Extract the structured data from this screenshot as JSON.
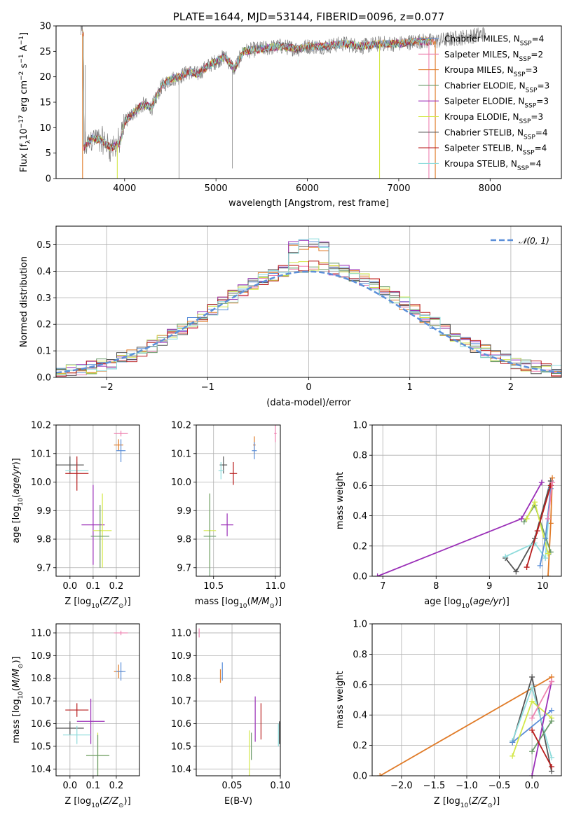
{
  "colors": {
    "chabrier_miles": "#5b8fd9",
    "salpeter_miles": "#ee82b0",
    "kroupa_miles": "#e07b28",
    "chabrier_elodie": "#6a9a6a",
    "salpeter_elodie": "#9b30b8",
    "kroupa_elodie": "#d4e84a",
    "chabrier_stelib": "#555555",
    "salpeter_stelib": "#b81c1c",
    "kroupa_stelib": "#8fdcdc",
    "data_gray": "#808080",
    "grid": "#b0b0b0"
  },
  "legend_sp": [
    {
      "key": "chabrier_miles",
      "text": "Chabrier MILES, N",
      "sub": "SSP",
      "suf": "=4"
    },
    {
      "key": "salpeter_miles",
      "text": "Salpeter MILES, N",
      "sub": "SSP",
      "suf": "=2"
    },
    {
      "key": "kroupa_miles",
      "text": "Kroupa MILES, N",
      "sub": "SSP",
      "suf": "=3"
    },
    {
      "key": "chabrier_elodie",
      "text": "Chabrier ELODIE, N",
      "sub": "SSP",
      "suf": "=3"
    },
    {
      "key": "salpeter_elodie",
      "text": "Salpeter ELODIE, N",
      "sub": "SSP",
      "suf": "=3"
    },
    {
      "key": "kroupa_elodie",
      "text": "Kroupa ELODIE, N",
      "sub": "SSP",
      "suf": "=3"
    },
    {
      "key": "chabrier_stelib",
      "text": "Chabrier STELIB, N",
      "sub": "SSP",
      "suf": "=4"
    },
    {
      "key": "salpeter_stelib",
      "text": "Salpeter STELIB, N",
      "sub": "SSP",
      "suf": "=4"
    },
    {
      "key": "kroupa_stelib",
      "text": "Kroupa STELIB, N",
      "sub": "SSP",
      "suf": "=4"
    }
  ],
  "chart_data": [
    {
      "type": "line",
      "title": "PLATE=1644, MJD=53144, FIBERID=0096, z=0.077",
      "xlabel": "wavelength [Angstrom, rest frame]",
      "ylabel": "Flux [f_λ10^-17 erg cm^-2 s^-1 A^-1]",
      "xlim": [
        3250,
        8780
      ],
      "ylim": [
        0,
        30
      ],
      "xticks": [
        4000,
        5000,
        6000,
        7000,
        8000
      ],
      "yticks": [
        0,
        5,
        10,
        15,
        20,
        25,
        30
      ],
      "spectrum_anchors": [
        [
          3550,
          6
        ],
        [
          3650,
          8
        ],
        [
          3750,
          7.5
        ],
        [
          3850,
          6
        ],
        [
          3950,
          7
        ],
        [
          4000,
          11
        ],
        [
          4100,
          13
        ],
        [
          4200,
          14.5
        ],
        [
          4300,
          14
        ],
        [
          4400,
          18
        ],
        [
          4500,
          19.5
        ],
        [
          4600,
          20
        ],
        [
          4700,
          21
        ],
        [
          4800,
          20.5
        ],
        [
          4900,
          22
        ],
        [
          5000,
          23
        ],
        [
          5100,
          24
        ],
        [
          5200,
          21.5
        ],
        [
          5300,
          25
        ],
        [
          5500,
          25.5
        ],
        [
          5700,
          26
        ],
        [
          5900,
          25.5
        ],
        [
          6000,
          26
        ],
        [
          6200,
          26
        ],
        [
          6400,
          26.5
        ],
        [
          6600,
          26
        ],
        [
          6800,
          26.5
        ],
        [
          7000,
          26.5
        ],
        [
          7200,
          27
        ],
        [
          7400,
          27
        ],
        [
          7600,
          27.5
        ],
        [
          7800,
          28
        ],
        [
          7950,
          28.5
        ]
      ]
    },
    {
      "type": "line",
      "xlabel": "(data-model)/error",
      "ylabel": "Normed distribution",
      "xlim": [
        -2.5,
        2.5
      ],
      "ylim": [
        0,
        0.57
      ],
      "xticks": [
        -2,
        -1,
        0,
        1,
        2
      ],
      "xtick_labels": [
        "−2",
        "−1",
        "0",
        "1",
        "2"
      ],
      "yticks": [
        0,
        0.1,
        0.2,
        0.3,
        0.4,
        0.5
      ],
      "ytick_labels": [
        "0.0",
        "0.1",
        "0.2",
        "0.3",
        "0.4",
        "0.5"
      ],
      "reference_curve": "𝒩(0, 1)",
      "hist_bins": 50
    },
    {
      "type": "scatter",
      "xlabel": "Z [log10(Z/Z⊙)]",
      "ylabel": "age  [log10(age/yr)]",
      "xlim": [
        -0.06,
        0.3
      ],
      "ylim": [
        9.67,
        10.2
      ],
      "xticks": [
        0.0,
        0.1,
        0.2
      ],
      "xtick_labels": [
        "0.0",
        "0.1",
        "0.2"
      ],
      "yticks": [
        9.7,
        9.8,
        9.9,
        10.0,
        10.1,
        10.2
      ],
      "ytick_labels": [
        "9.7",
        "9.8",
        "9.9",
        "10.0",
        "10.1",
        "10.2"
      ],
      "points": [
        {
          "s": "salpeter_miles",
          "x": 0.22,
          "xerr": 0.03,
          "y": 10.17,
          "yerr": 0.01
        },
        {
          "s": "kroupa_miles",
          "x": 0.21,
          "xerr": 0.02,
          "y": 10.13,
          "yerr": 0.02
        },
        {
          "s": "chabrier_miles",
          "x": 0.22,
          "xerr": 0.02,
          "y": 10.11,
          "yerr": 0.04
        },
        {
          "s": "chabrier_stelib",
          "x": 0.0,
          "xerr": 0.06,
          "y": 10.06,
          "yerr": 0.03
        },
        {
          "s": "kroupa_stelib",
          "x": 0.03,
          "xerr": 0.05,
          "y": 10.04,
          "yerr": 0.03
        },
        {
          "s": "salpeter_stelib",
          "x": 0.03,
          "xerr": 0.05,
          "y": 10.03,
          "yerr": 0.06
        },
        {
          "s": "salpeter_elodie",
          "x": 0.1,
          "xerr": 0.05,
          "y": 9.85,
          "yerr": 0.14
        },
        {
          "s": "kroupa_elodie",
          "x": 0.14,
          "xerr": 0.04,
          "y": 9.83,
          "yerr": 0.13
        },
        {
          "s": "chabrier_elodie",
          "x": 0.13,
          "xerr": 0.04,
          "y": 9.81,
          "yerr": 0.11
        }
      ]
    },
    {
      "type": "scatter",
      "xlabel": "mass [log10(M/M⊙)]",
      "xlim": [
        10.36,
        11.04
      ],
      "ylim": [
        9.67,
        10.2
      ],
      "xticks": [
        10.5,
        11.0
      ],
      "xtick_labels": [
        "10.5",
        "11.0"
      ],
      "yticks": [
        9.7,
        9.8,
        9.9,
        10.0,
        10.1,
        10.2
      ],
      "ytick_labels": [
        "9.7",
        "9.8",
        "9.9",
        "10.0",
        "10.1",
        "10.2"
      ],
      "points": [
        {
          "s": "salpeter_miles",
          "x": 11.0,
          "xerr": 0.01,
          "y": 10.17,
          "yerr": 0.03
        },
        {
          "s": "kroupa_miles",
          "x": 10.83,
          "xerr": 0.01,
          "y": 10.13,
          "yerr": 0.03
        },
        {
          "s": "chabrier_miles",
          "x": 10.83,
          "xerr": 0.02,
          "y": 10.11,
          "yerr": 0.03
        },
        {
          "s": "chabrier_stelib",
          "x": 10.58,
          "xerr": 0.03,
          "y": 10.06,
          "yerr": 0.03
        },
        {
          "s": "kroupa_stelib",
          "x": 10.56,
          "xerr": 0.02,
          "y": 10.04,
          "yerr": 0.03
        },
        {
          "s": "salpeter_stelib",
          "x": 10.66,
          "xerr": 0.03,
          "y": 10.03,
          "yerr": 0.04
        },
        {
          "s": "salpeter_elodie",
          "x": 10.61,
          "xerr": 0.05,
          "y": 9.85,
          "yerr": 0.04
        },
        {
          "s": "kroupa_elodie",
          "x": 10.47,
          "xerr": 0.05,
          "y": 9.83,
          "yerr": 0.13
        },
        {
          "s": "chabrier_elodie",
          "x": 10.47,
          "xerr": 0.05,
          "y": 9.81,
          "yerr": 0.15
        }
      ]
    },
    {
      "type": "line",
      "xlabel": "age  [log10(age/yr)]",
      "ylabel": "mass weight",
      "xlim": [
        6.8,
        10.35
      ],
      "ylim": [
        0,
        1
      ],
      "xticks": [
        7,
        8,
        9,
        10
      ],
      "xtick_labels": [
        "7",
        "8",
        "9",
        "10"
      ],
      "yticks": [
        0,
        0.2,
        0.4,
        0.6,
        0.8,
        1.0
      ],
      "ytick_labels": [
        "0.0",
        "0.2",
        "0.4",
        "0.6",
        "0.8",
        "1.0"
      ],
      "series": [
        {
          "s": "salpeter_elodie",
          "x": [
            6.9,
            9.6,
            9.98
          ],
          "y": [
            0.0,
            0.38,
            0.62
          ]
        },
        {
          "s": "kroupa_miles",
          "x": [
            10.1,
            10.15,
            10.18
          ],
          "y": [
            0.0,
            0.35,
            0.65
          ]
        },
        {
          "s": "chabrier_stelib",
          "x": [
            9.3,
            9.5,
            9.85,
            10.15
          ],
          "y": [
            0.12,
            0.03,
            0.25,
            0.63
          ]
        },
        {
          "s": "kroupa_stelib",
          "x": [
            9.3,
            9.85,
            10.05,
            10.15
          ],
          "y": [
            0.13,
            0.22,
            0.12,
            0.58
          ]
        },
        {
          "s": "chabrier_elodie",
          "x": [
            9.65,
            9.85,
            10.15
          ],
          "y": [
            0.36,
            0.47,
            0.16
          ]
        },
        {
          "s": "kroupa_elodie",
          "x": [
            9.7,
            9.85,
            10.1
          ],
          "y": [
            0.38,
            0.49,
            0.15
          ]
        },
        {
          "s": "chabrier_miles",
          "x": [
            9.95,
            10.05,
            10.15
          ],
          "y": [
            0.07,
            0.25,
            0.58
          ]
        },
        {
          "s": "salpeter_stelib",
          "x": [
            9.7,
            9.9,
            10.15
          ],
          "y": [
            0.06,
            0.3,
            0.6
          ]
        },
        {
          "s": "salpeter_miles",
          "x": [
            10.1,
            10.18
          ],
          "y": [
            0.38,
            0.62
          ]
        }
      ]
    },
    {
      "type": "scatter",
      "xlabel": "Z [log10(Z/Z⊙)]",
      "ylabel": "mass [log10(M/M⊙)]",
      "xlim": [
        -0.06,
        0.3
      ],
      "ylim": [
        10.37,
        11.04
      ],
      "xticks": [
        0.0,
        0.1,
        0.2
      ],
      "xtick_labels": [
        "0.0",
        "0.1",
        "0.2"
      ],
      "yticks": [
        10.4,
        10.5,
        10.6,
        10.7,
        10.8,
        10.9,
        11.0
      ],
      "ytick_labels": [
        "10.4",
        "10.5",
        "10.6",
        "10.7",
        "10.8",
        "10.9",
        "11.0"
      ],
      "points": [
        {
          "s": "salpeter_miles",
          "x": 0.22,
          "xerr": 0.03,
          "y": 11.0,
          "yerr": 0.01
        },
        {
          "s": "kroupa_miles",
          "x": 0.21,
          "xerr": 0.02,
          "y": 10.83,
          "yerr": 0.03
        },
        {
          "s": "chabrier_miles",
          "x": 0.22,
          "xerr": 0.02,
          "y": 10.83,
          "yerr": 0.04
        },
        {
          "s": "salpeter_stelib",
          "x": 0.03,
          "xerr": 0.05,
          "y": 10.66,
          "yerr": 0.03
        },
        {
          "s": "salpeter_elodie",
          "x": 0.09,
          "xerr": 0.06,
          "y": 10.61,
          "yerr": 0.1
        },
        {
          "s": "chabrier_stelib",
          "x": 0.0,
          "xerr": 0.06,
          "y": 10.58,
          "yerr": 0.03
        },
        {
          "s": "kroupa_stelib",
          "x": 0.03,
          "xerr": 0.06,
          "y": 10.55,
          "yerr": 0.04
        },
        {
          "s": "kroupa_elodie",
          "x": 0.12,
          "xerr": 0.05,
          "y": 10.46,
          "yerr": 0.1
        },
        {
          "s": "chabrier_elodie",
          "x": 0.12,
          "xerr": 0.05,
          "y": 10.46,
          "yerr": 0.09
        }
      ]
    },
    {
      "type": "scatter",
      "xlabel": "E(B-V)",
      "xlim": [
        0.013,
        0.1
      ],
      "ylim": [
        10.37,
        11.04
      ],
      "xticks": [
        0.05,
        0.1
      ],
      "xtick_labels": [
        "0.05",
        "0.10"
      ],
      "yticks": [
        10.4,
        10.5,
        10.6,
        10.7,
        10.8,
        10.9,
        11.0
      ],
      "ytick_labels": [
        "10.4",
        "10.5",
        "10.6",
        "10.7",
        "10.8",
        "10.9",
        "11.0"
      ],
      "points": [
        {
          "s": "salpeter_miles",
          "x": 0.016,
          "xerr": 0.0,
          "y": 11.0,
          "yerr": 0.02
        },
        {
          "s": "chabrier_miles",
          "x": 0.04,
          "xerr": 0.0,
          "y": 10.83,
          "yerr": 0.04
        },
        {
          "s": "kroupa_miles",
          "x": 0.038,
          "xerr": 0.0,
          "y": 10.81,
          "yerr": 0.03
        },
        {
          "s": "salpeter_elodie",
          "x": 0.074,
          "xerr": 0.0,
          "y": 10.62,
          "yerr": 0.1
        },
        {
          "s": "salpeter_stelib",
          "x": 0.08,
          "xerr": 0.0,
          "y": 10.61,
          "yerr": 0.08
        },
        {
          "s": "chabrier_stelib",
          "x": 0.099,
          "xerr": 0.0,
          "y": 10.56,
          "yerr": 0.05
        },
        {
          "s": "kroupa_stelib",
          "x": 0.098,
          "xerr": 0.0,
          "y": 10.55,
          "yerr": 0.05
        },
        {
          "s": "chabrier_elodie",
          "x": 0.07,
          "xerr": 0.0,
          "y": 10.5,
          "yerr": 0.06
        },
        {
          "s": "kroupa_elodie",
          "x": 0.068,
          "xerr": 0.0,
          "y": 10.47,
          "yerr": 0.1
        }
      ]
    },
    {
      "type": "line",
      "xlabel": "Z [log10(Z/Z⊙)]",
      "ylabel": "mass weight",
      "xlim": [
        -2.45,
        0.45
      ],
      "ylim": [
        0,
        1
      ],
      "xticks": [
        -2.0,
        -1.5,
        -1.0,
        -0.5,
        0.0
      ],
      "xtick_labels": [
        "−2.0",
        "−1.5",
        "−1.0",
        "−0.5",
        "0.0"
      ],
      "yticks": [
        0,
        0.2,
        0.4,
        0.6,
        0.8,
        1.0
      ],
      "ytick_labels": [
        "0.0",
        "0.2",
        "0.4",
        "0.6",
        "0.8",
        "1.0"
      ],
      "series": [
        {
          "s": "kroupa_miles",
          "x": [
            -2.33,
            0.3
          ],
          "y": [
            0.0,
            0.65
          ]
        },
        {
          "s": "chabrier_stelib",
          "x": [
            -0.3,
            0.0,
            0.3
          ],
          "y": [
            0.22,
            0.65,
            0.03
          ]
        },
        {
          "s": "kroupa_stelib",
          "x": [
            -0.3,
            0.0,
            0.3
          ],
          "y": [
            0.23,
            0.58,
            0.12
          ]
        },
        {
          "s": "chabrier_miles",
          "x": [
            -0.3,
            0.3
          ],
          "y": [
            0.22,
            0.43
          ]
        },
        {
          "s": "kroupa_elodie",
          "x": [
            -0.3,
            0.0,
            0.3
          ],
          "y": [
            0.13,
            0.49,
            0.38
          ]
        },
        {
          "s": "salpeter_elodie",
          "x": [
            0.0,
            0.3
          ],
          "y": [
            0.0,
            0.62
          ]
        },
        {
          "s": "chabrier_elodie",
          "x": [
            0.0,
            0.3
          ],
          "y": [
            0.16,
            0.36
          ]
        },
        {
          "s": "salpeter_miles",
          "x": [
            0.0,
            0.3
          ],
          "y": [
            0.38,
            0.62
          ]
        },
        {
          "s": "salpeter_stelib",
          "x": [
            0.0,
            0.3
          ],
          "y": [
            0.3,
            0.06
          ]
        }
      ]
    }
  ]
}
